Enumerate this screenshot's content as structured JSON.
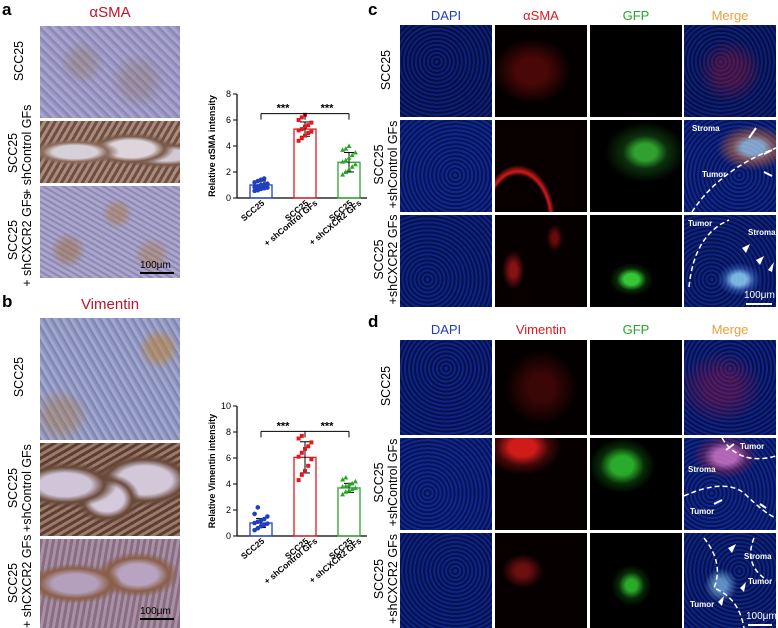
{
  "panels": {
    "a": {
      "letter": "a",
      "stain": "αSMA",
      "rows": [
        "SCC25",
        "SCC25\n+ shControl GFs",
        "SCC25\n+ shCXCR2 GFs"
      ],
      "scale": "100μm"
    },
    "b": {
      "letter": "b",
      "stain": "Vimentin",
      "rows": [
        "SCC25",
        "SCC25\n+shControl GFs",
        "SCC25\n+ shCXCR2 GFs"
      ],
      "scale": "100μm"
    },
    "c": {
      "letter": "c",
      "channels": [
        "DAPI",
        "αSMA",
        "GFP",
        "Merge"
      ],
      "rows": [
        "SCC25",
        "SCC25\n+shControl GFs",
        "SCC25\n+shCXCR2 GFs"
      ],
      "annotations": [
        "Stroma",
        "Tumor",
        "Tumor",
        "Stroma"
      ],
      "scale": "100μm"
    },
    "d": {
      "letter": "d",
      "channels": [
        "DAPI",
        "Vimentin",
        "GFP",
        "Merge"
      ],
      "rows": [
        "SCC25",
        "SCC25\n+shControl GFs",
        "SCC25\n+shCXCR2 GFs"
      ],
      "annotations": [
        "Tumor",
        "Stroma",
        "Tumor",
        "Stroma",
        "Tumor",
        "Tumor"
      ],
      "scale": "100μm"
    }
  },
  "colors": {
    "blue": "#1f3fbf",
    "red": "#e0191e",
    "green": "#2aa52a",
    "orange": "#e8a03a",
    "title_red": "#c0142d"
  },
  "chart_data": [
    {
      "type": "bar",
      "ylabel": "Relative αSMA intensity",
      "categories": [
        "SCC25",
        "SCC25\n+ shControl GFs",
        "SCC25\n+ shCXCR2 GFs"
      ],
      "values": [
        1.0,
        5.3,
        2.75
      ],
      "errors": [
        0.3,
        0.55,
        0.75
      ],
      "points": [
        [
          0.55,
          0.6,
          0.7,
          0.75,
          0.8,
          0.85,
          0.9,
          1.0,
          1.05,
          1.1,
          1.2,
          1.3,
          1.4,
          1.5
        ],
        [
          4.4,
          4.6,
          4.8,
          5.0,
          5.1,
          5.2,
          5.3,
          5.5,
          5.6,
          5.8,
          6.0,
          6.2,
          6.4
        ],
        [
          1.8,
          2.0,
          2.2,
          2.4,
          2.6,
          2.8,
          2.9,
          3.1,
          3.3,
          3.5,
          3.7,
          3.8,
          4.0
        ]
      ],
      "colors": [
        "#1f3fbf",
        "#e0191e",
        "#2aa52a"
      ],
      "ylim": [
        0,
        8
      ],
      "yticks": [
        0,
        2,
        4,
        6,
        8
      ],
      "significance": [
        "***",
        "***"
      ]
    },
    {
      "type": "bar",
      "ylabel": "Relative Vimentin intensity",
      "categories": [
        "SCC25",
        "SCC25\n+ shControl GFs",
        "SCC25\n+ shCXCR2 GFs"
      ],
      "values": [
        1.0,
        6.05,
        3.7
      ],
      "errors": [
        0.35,
        1.2,
        0.35
      ],
      "points": [
        [
          0.45,
          0.6,
          0.75,
          0.85,
          0.95,
          1.0,
          1.1,
          1.2,
          1.3,
          1.5,
          1.7,
          2.2
        ],
        [
          4.3,
          4.7,
          5.0,
          5.4,
          5.9,
          6.1,
          6.4,
          6.7,
          6.9,
          7.2,
          7.5,
          7.7
        ],
        [
          3.2,
          3.4,
          3.5,
          3.6,
          3.7,
          3.8,
          3.85,
          3.95,
          4.05,
          4.2,
          4.35,
          4.5
        ]
      ],
      "colors": [
        "#1f3fbf",
        "#e0191e",
        "#2aa52a"
      ],
      "ylim": [
        0,
        10
      ],
      "yticks": [
        0,
        2,
        4,
        6,
        8,
        10
      ],
      "significance": [
        "***",
        "***"
      ]
    }
  ]
}
